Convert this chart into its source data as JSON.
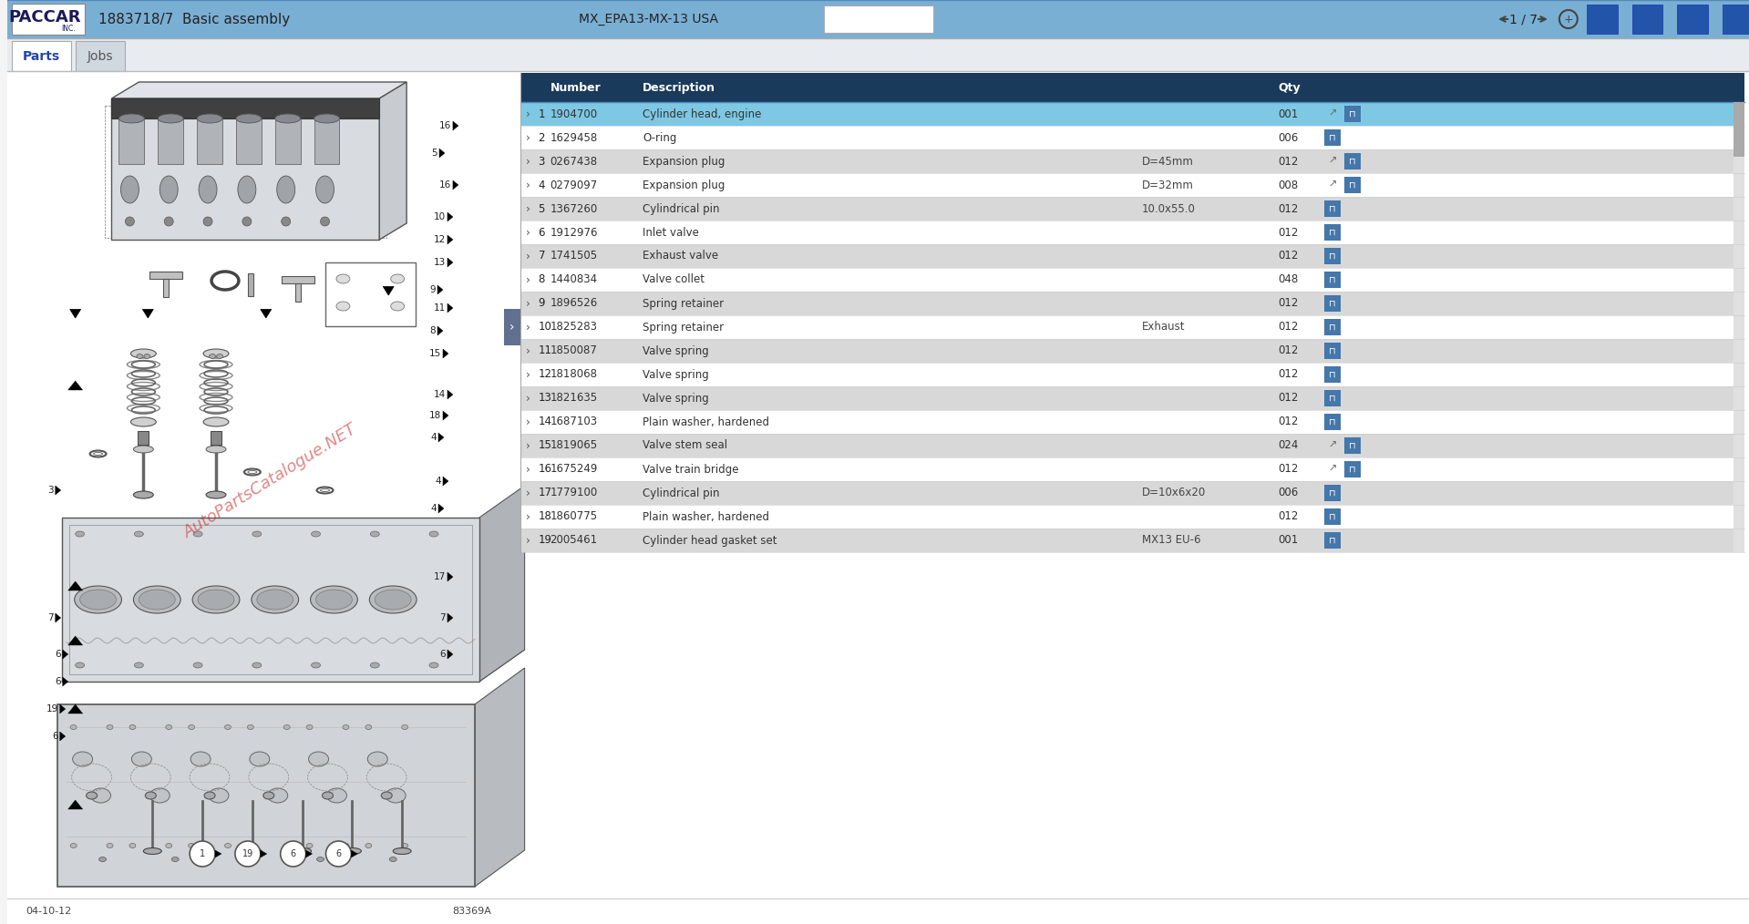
{
  "title": "1883718/7  Basic assembly",
  "model": "MX_EPA13-MX-13 USA",
  "page_info": "1 / 7",
  "date": "04-10-12",
  "drawing_id": "83369A",
  "bg_color": "#f4f4f4",
  "content_bg": "#ffffff",
  "header_bg": "#7aafd4",
  "header_text_color": "#ffffff",
  "table_header_bg": "#1a3a5c",
  "table_header_text": "#ffffff",
  "row_alt": "#d8d8d8",
  "row_selected": "#7ec8e3",
  "row_white": "#ffffff",
  "tab_active_bg": "#ffffff",
  "tab_inactive_bg": "#d0d8e0",
  "tab_bar_bg": "#e8ecf0",
  "paccar_logo_text": "PACCAR",
  "watermark": "AutoPartsCatalogue.NET",
  "parts": [
    {
      "row": 1,
      "num": "1904700",
      "desc": "Cylinder head, engine",
      "detail": "",
      "qty": "001",
      "selected": true,
      "has_arrow": true
    },
    {
      "row": 2,
      "num": "1629458",
      "desc": "O-ring",
      "detail": "",
      "qty": "006",
      "selected": false,
      "has_arrow": false
    },
    {
      "row": 3,
      "num": "0267438",
      "desc": "Expansion plug",
      "detail": "D=45mm",
      "qty": "012",
      "selected": false,
      "has_arrow": true
    },
    {
      "row": 4,
      "num": "0279097",
      "desc": "Expansion plug",
      "detail": "D=32mm",
      "qty": "008",
      "selected": false,
      "has_arrow": true
    },
    {
      "row": 5,
      "num": "1367260",
      "desc": "Cylindrical pin",
      "detail": "10.0x55.0",
      "qty": "012",
      "selected": false,
      "has_arrow": false
    },
    {
      "row": 6,
      "num": "1912976",
      "desc": "Inlet valve",
      "detail": "",
      "qty": "012",
      "selected": false,
      "has_arrow": false
    },
    {
      "row": 7,
      "num": "1741505",
      "desc": "Exhaust valve",
      "detail": "",
      "qty": "012",
      "selected": false,
      "has_arrow": false
    },
    {
      "row": 8,
      "num": "1440834",
      "desc": "Valve collet",
      "detail": "",
      "qty": "048",
      "selected": false,
      "has_arrow": false
    },
    {
      "row": 9,
      "num": "1896526",
      "desc": "Spring retainer",
      "detail": "",
      "qty": "012",
      "selected": false,
      "has_arrow": false
    },
    {
      "row": 10,
      "num": "1825283",
      "desc": "Spring retainer",
      "detail": "Exhaust",
      "qty": "012",
      "selected": false,
      "has_arrow": false
    },
    {
      "row": 11,
      "num": "1850087",
      "desc": "Valve spring",
      "detail": "",
      "qty": "012",
      "selected": false,
      "has_arrow": false
    },
    {
      "row": 12,
      "num": "1818068",
      "desc": "Valve spring",
      "detail": "",
      "qty": "012",
      "selected": false,
      "has_arrow": false
    },
    {
      "row": 13,
      "num": "1821635",
      "desc": "Valve spring",
      "detail": "",
      "qty": "012",
      "selected": false,
      "has_arrow": false
    },
    {
      "row": 14,
      "num": "1687103",
      "desc": "Plain washer, hardened",
      "detail": "",
      "qty": "012",
      "selected": false,
      "has_arrow": false
    },
    {
      "row": 15,
      "num": "1819065",
      "desc": "Valve stem seal",
      "detail": "",
      "qty": "024",
      "selected": false,
      "has_arrow": true
    },
    {
      "row": 16,
      "num": "1675249",
      "desc": "Valve train bridge",
      "detail": "",
      "qty": "012",
      "selected": false,
      "has_arrow": true
    },
    {
      "row": 17,
      "num": "1779100",
      "desc": "Cylindrical pin",
      "detail": "D=10x6x20",
      "qty": "006",
      "selected": false,
      "has_arrow": false
    },
    {
      "row": 18,
      "num": "1860775",
      "desc": "Plain washer, hardened",
      "detail": "",
      "qty": "012",
      "selected": false,
      "has_arrow": false
    },
    {
      "row": 19,
      "num": "2005461",
      "desc": "Cylinder head gasket set",
      "detail": "MX13 EU-6",
      "qty": "001",
      "selected": false,
      "has_arrow": false
    }
  ]
}
